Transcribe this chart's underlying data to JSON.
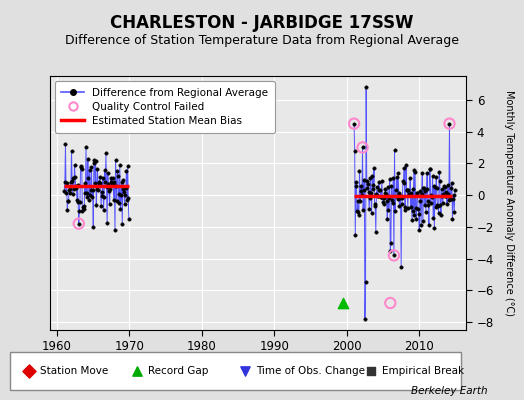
{
  "title": "CHARLESTON - JARBIDGE 17SSW",
  "subtitle": "Difference of Station Temperature Data from Regional Average",
  "ylabel": "Monthly Temperature Anomaly Difference (°C)",
  "credit": "Berkeley Earth",
  "xlim": [
    1959,
    2016.5
  ],
  "ylim": [
    -8.5,
    7.5
  ],
  "yticks": [
    -8,
    -6,
    -4,
    -2,
    0,
    2,
    4,
    6
  ],
  "xticks": [
    1960,
    1970,
    1980,
    1990,
    2000,
    2010
  ],
  "bg_color": "#e0e0e0",
  "plot_bg_color": "#e8e8e8",
  "segment1_bias": 0.55,
  "segment1_start": 1961.0,
  "segment1_end": 1969.92,
  "segment2_bias": -0.05,
  "segment2_start": 2001.0,
  "segment2_end": 2014.5,
  "line_color": "#5555ff",
  "dot_color": "#000000",
  "bias_color": "#ff0000",
  "qc_color": "#ff88cc",
  "gap_line_color": "#aaaacc",
  "title_fontsize": 12,
  "subtitle_fontsize": 9,
  "seed1": 15,
  "seed2": 23,
  "s1_mean": 0.55,
  "s1_std": 0.85,
  "s2_mean": -0.05,
  "s2_std": 0.9
}
